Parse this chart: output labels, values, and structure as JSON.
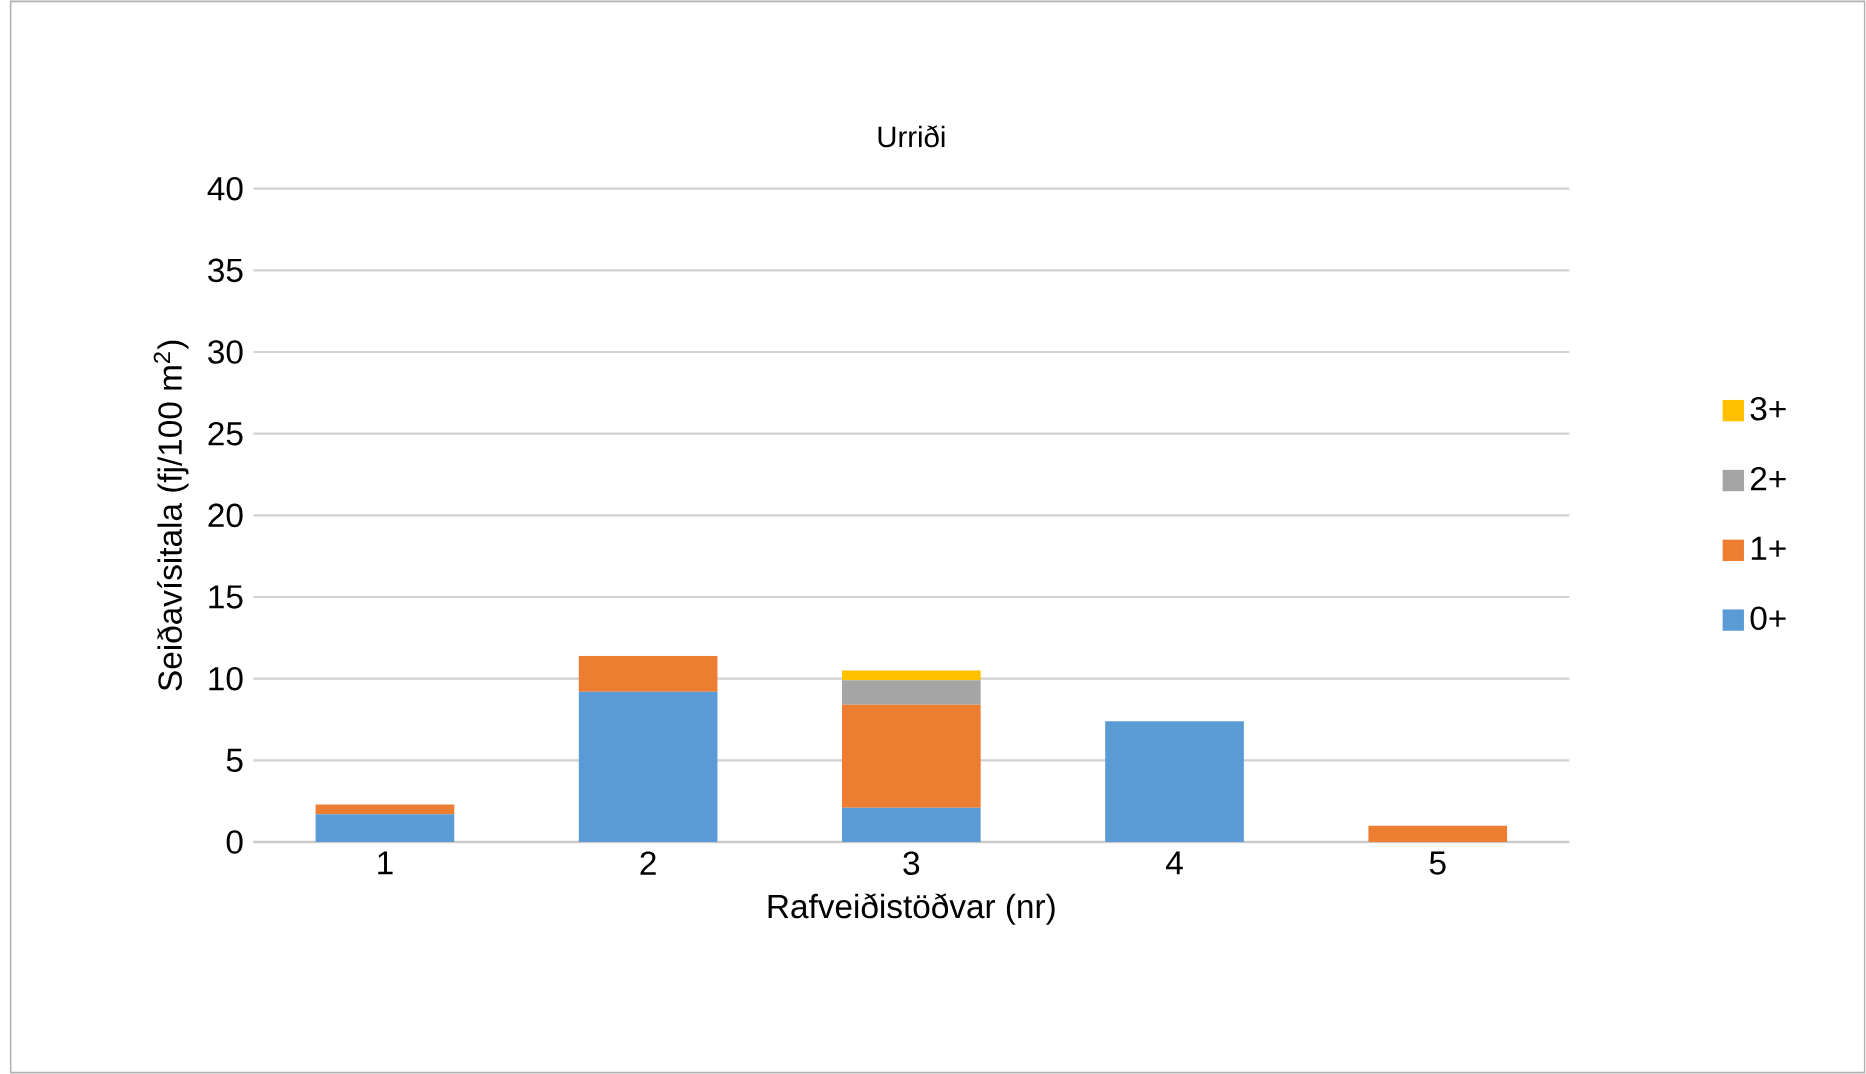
{
  "chart_data": {
    "type": "bar",
    "stacked": true,
    "title": "Urriði",
    "xlabel": "Rafveiðistöðvar (nr)",
    "ylabel": "Seiðavísitala (fj/100 m$^{2}$)",
    "categories": [
      "1",
      "2",
      "3",
      "4",
      "5"
    ],
    "series": [
      {
        "name": "0+",
        "color": "#5b9bd5",
        "values": [
          1.7,
          9.2,
          2.1,
          7.4,
          0
        ]
      },
      {
        "name": "1+",
        "color": "#ed7d31",
        "values": [
          0.6,
          2.2,
          6.3,
          0,
          1.0
        ]
      },
      {
        "name": "2+",
        "color": "#a5a5a5",
        "values": [
          0,
          0,
          1.5,
          0,
          0
        ]
      },
      {
        "name": "3+",
        "color": "#ffc000",
        "values": [
          0,
          0,
          0.6,
          0,
          0
        ]
      }
    ],
    "ylim": [
      0,
      40
    ],
    "yticks": [
      0,
      5,
      10,
      15,
      20,
      25,
      30,
      35,
      40
    ],
    "grid": "y",
    "legend": "right"
  }
}
